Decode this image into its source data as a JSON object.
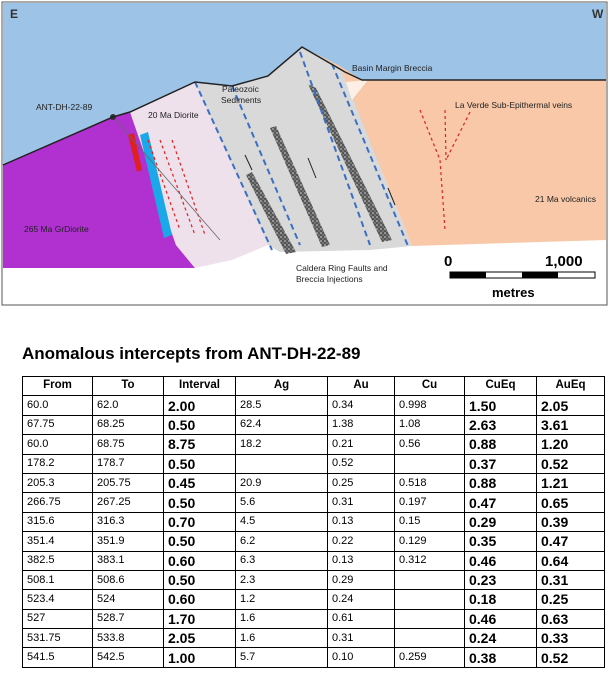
{
  "diagram": {
    "east": "E",
    "west": "W",
    "labels": {
      "drillhole": "ANT-DH-22-89",
      "diorite": "20 Ma Diorite",
      "paleozoic": [
        "Paleozoic",
        "Sediments"
      ],
      "breccia": "Basin Margin Breccia",
      "veins": "La Verde Sub-Epithermal veins",
      "volcanics": "21 Ma volcanics",
      "grdiorite": "265 Ma GrDiorite",
      "faults": [
        "Caldera Ring Faults and",
        "Breccia Injections"
      ]
    },
    "scale": {
      "start": "0",
      "end": "1,000",
      "unit": "metres"
    }
  },
  "table": {
    "title": "Anomalous intercepts from ANT-DH-22-89",
    "headers": [
      "From",
      "To",
      "Interval",
      "Ag",
      "Au",
      "Cu",
      "CuEq",
      "AuEq"
    ],
    "rows": [
      [
        "60.0",
        "62.0",
        "2.00",
        "28.5",
        "0.34",
        "0.998",
        "1.50",
        "2.05"
      ],
      [
        "67.75",
        "68.25",
        "0.50",
        "62.4",
        "1.38",
        "1.08",
        "2.63",
        "3.61"
      ],
      [
        "60.0",
        "68.75",
        "8.75",
        "18.2",
        "0.21",
        "0.56",
        "0.88",
        "1.20"
      ],
      [
        "178.2",
        "178.7",
        "0.50",
        null,
        "0.52",
        null,
        "0.37",
        "0.52"
      ],
      [
        "205.3",
        "205.75",
        "0.45",
        "20.9",
        "0.25",
        "0.518",
        "0.88",
        "1.21"
      ],
      [
        "266.75",
        "267.25",
        "0.50",
        "5.6",
        "0.31",
        "0.197",
        "0.47",
        "0.65"
      ],
      [
        "315.6",
        "316.3",
        "0.70",
        "4.5",
        "0.13",
        "0.15",
        "0.29",
        "0.39"
      ],
      [
        "351.4",
        "351.9",
        "0.50",
        "6.2",
        "0.22",
        "0.129",
        "0.35",
        "0.47"
      ],
      [
        "382.5",
        "383.1",
        "0.60",
        "6.3",
        "0.13",
        "0.312",
        "0.46",
        "0.64"
      ],
      [
        "508.1",
        "508.6",
        "0.50",
        "2.3",
        "0.29",
        null,
        "0.23",
        "0.31"
      ],
      [
        "523.4",
        "524",
        "0.60",
        "1.2",
        "0.24",
        null,
        "0.18",
        "0.25"
      ],
      [
        "527",
        "528.7",
        "1.70",
        "1.6",
        "0.61",
        null,
        "0.46",
        "0.63"
      ],
      [
        "531.75",
        "533.8",
        "2.05",
        "1.6",
        "0.31",
        null,
        "0.24",
        "0.33"
      ],
      [
        "541.5",
        "542.5",
        "1.00",
        "5.7",
        "0.10",
        "0.259",
        "0.38",
        "0.52"
      ]
    ]
  }
}
